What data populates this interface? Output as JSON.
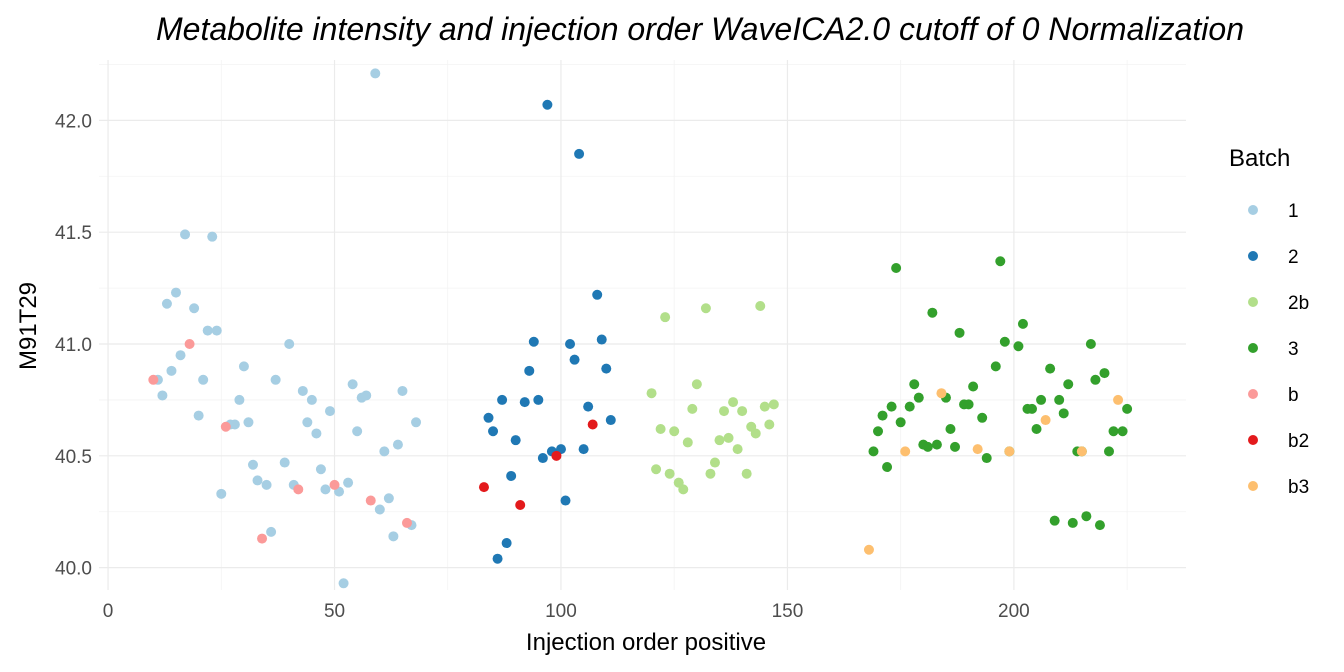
{
  "chart_data": {
    "type": "scatter",
    "title": "Metabolite intensity and injection order WaveICA2.0 cutoff of 0 Normalization",
    "xlabel": "Injection order positive",
    "ylabel": "M91T29",
    "xlim": [
      -2,
      238
    ],
    "ylim": [
      39.9,
      42.27
    ],
    "x_ticks": [
      0,
      50,
      100,
      150,
      200
    ],
    "x_tick_labels": [
      "0",
      "50",
      "100",
      "150",
      "200"
    ],
    "y_ticks": [
      40.0,
      40.5,
      41.0,
      41.5,
      42.0
    ],
    "y_tick_labels": [
      "40.0",
      "40.5",
      "41.0",
      "41.5",
      "42.0"
    ],
    "grid": true,
    "legend": {
      "title": "Batch",
      "position": "right"
    },
    "series": [
      {
        "name": "1",
        "color": "#a6cee3",
        "points": [
          [
            11,
            40.84
          ],
          [
            12,
            40.77
          ],
          [
            13,
            41.18
          ],
          [
            14,
            40.88
          ],
          [
            15,
            41.23
          ],
          [
            16,
            40.95
          ],
          [
            17,
            41.49
          ],
          [
            19,
            41.16
          ],
          [
            20,
            40.68
          ],
          [
            21,
            40.84
          ],
          [
            22,
            41.06
          ],
          [
            23,
            41.48
          ],
          [
            24,
            41.06
          ],
          [
            25,
            40.33
          ],
          [
            27,
            40.64
          ],
          [
            28,
            40.64
          ],
          [
            29,
            40.75
          ],
          [
            30,
            40.9
          ],
          [
            31,
            40.65
          ],
          [
            32,
            40.46
          ],
          [
            33,
            40.39
          ],
          [
            35,
            40.37
          ],
          [
            36,
            40.16
          ],
          [
            37,
            40.84
          ],
          [
            39,
            40.47
          ],
          [
            40,
            41.0
          ],
          [
            41,
            40.37
          ],
          [
            43,
            40.79
          ],
          [
            44,
            40.65
          ],
          [
            45,
            40.75
          ],
          [
            46,
            40.6
          ],
          [
            47,
            40.44
          ],
          [
            48,
            40.35
          ],
          [
            49,
            40.7
          ],
          [
            51,
            40.34
          ],
          [
            52,
            39.93
          ],
          [
            53,
            40.38
          ],
          [
            54,
            40.82
          ],
          [
            55,
            40.61
          ],
          [
            56,
            40.76
          ],
          [
            57,
            40.77
          ],
          [
            59,
            42.21
          ],
          [
            60,
            40.26
          ],
          [
            61,
            40.52
          ],
          [
            62,
            40.31
          ],
          [
            63,
            40.14
          ],
          [
            64,
            40.55
          ],
          [
            65,
            40.79
          ],
          [
            67,
            40.19
          ],
          [
            68,
            40.65
          ]
        ]
      },
      {
        "name": "2",
        "color": "#1f78b4",
        "points": [
          [
            84,
            40.67
          ],
          [
            85,
            40.61
          ],
          [
            86,
            40.04
          ],
          [
            87,
            40.75
          ],
          [
            88,
            40.11
          ],
          [
            89,
            40.41
          ],
          [
            90,
            40.57
          ],
          [
            92,
            40.74
          ],
          [
            93,
            40.88
          ],
          [
            94,
            41.01
          ],
          [
            95,
            40.75
          ],
          [
            96,
            40.49
          ],
          [
            97,
            42.07
          ],
          [
            98,
            40.52
          ],
          [
            100,
            40.53
          ],
          [
            101,
            40.3
          ],
          [
            102,
            41.0
          ],
          [
            103,
            40.93
          ],
          [
            104,
            41.85
          ],
          [
            105,
            40.53
          ],
          [
            106,
            40.72
          ],
          [
            108,
            41.22
          ],
          [
            109,
            41.02
          ],
          [
            110,
            40.89
          ],
          [
            111,
            40.66
          ]
        ]
      },
      {
        "name": "2b",
        "color": "#b2df8a",
        "points": [
          [
            120,
            40.78
          ],
          [
            121,
            40.44
          ],
          [
            122,
            40.62
          ],
          [
            123,
            41.12
          ],
          [
            124,
            40.42
          ],
          [
            125,
            40.61
          ],
          [
            126,
            40.38
          ],
          [
            127,
            40.35
          ],
          [
            128,
            40.56
          ],
          [
            129,
            40.71
          ],
          [
            130,
            40.82
          ],
          [
            132,
            41.16
          ],
          [
            133,
            40.42
          ],
          [
            134,
            40.47
          ],
          [
            135,
            40.57
          ],
          [
            136,
            40.7
          ],
          [
            137,
            40.58
          ],
          [
            138,
            40.74
          ],
          [
            139,
            40.53
          ],
          [
            140,
            40.7
          ],
          [
            141,
            40.42
          ],
          [
            142,
            40.63
          ],
          [
            143,
            40.6
          ],
          [
            144,
            41.17
          ],
          [
            145,
            40.72
          ],
          [
            146,
            40.64
          ],
          [
            147,
            40.73
          ]
        ]
      },
      {
        "name": "3",
        "color": "#33a02c",
        "points": [
          [
            169,
            40.52
          ],
          [
            170,
            40.61
          ],
          [
            171,
            40.68
          ],
          [
            172,
            40.45
          ],
          [
            173,
            40.72
          ],
          [
            174,
            41.34
          ],
          [
            175,
            40.65
          ],
          [
            177,
            40.72
          ],
          [
            178,
            40.82
          ],
          [
            179,
            40.76
          ],
          [
            180,
            40.55
          ],
          [
            181,
            40.54
          ],
          [
            182,
            41.14
          ],
          [
            183,
            40.55
          ],
          [
            185,
            40.76
          ],
          [
            186,
            40.62
          ],
          [
            187,
            40.54
          ],
          [
            188,
            41.05
          ],
          [
            189,
            40.73
          ],
          [
            190,
            40.73
          ],
          [
            191,
            40.81
          ],
          [
            193,
            40.67
          ],
          [
            194,
            40.49
          ],
          [
            196,
            40.9
          ],
          [
            197,
            41.37
          ],
          [
            198,
            41.01
          ],
          [
            199,
            40.52
          ],
          [
            201,
            40.99
          ],
          [
            202,
            41.09
          ],
          [
            203,
            40.71
          ],
          [
            204,
            40.71
          ],
          [
            205,
            40.62
          ],
          [
            206,
            40.75
          ],
          [
            208,
            40.89
          ],
          [
            209,
            40.21
          ],
          [
            210,
            40.75
          ],
          [
            211,
            40.69
          ],
          [
            212,
            40.82
          ],
          [
            213,
            40.2
          ],
          [
            214,
            40.52
          ],
          [
            215,
            40.52
          ],
          [
            216,
            40.23
          ],
          [
            217,
            41.0
          ],
          [
            218,
            40.84
          ],
          [
            219,
            40.19
          ],
          [
            220,
            40.87
          ],
          [
            221,
            40.52
          ],
          [
            222,
            40.61
          ],
          [
            224,
            40.61
          ],
          [
            225,
            40.71
          ]
        ]
      },
      {
        "name": "b",
        "color": "#fb9a99",
        "points": [
          [
            10,
            40.84
          ],
          [
            18,
            41.0
          ],
          [
            26,
            40.63
          ],
          [
            34,
            40.13
          ],
          [
            42,
            40.35
          ],
          [
            50,
            40.37
          ],
          [
            58,
            40.3
          ],
          [
            66,
            40.2
          ]
        ]
      },
      {
        "name": "b2",
        "color": "#e31a1c",
        "points": [
          [
            83,
            40.36
          ],
          [
            91,
            40.28
          ],
          [
            99,
            40.5
          ],
          [
            107,
            40.64
          ]
        ]
      },
      {
        "name": "b3",
        "color": "#fdbf6f",
        "points": [
          [
            168,
            40.08
          ],
          [
            176,
            40.52
          ],
          [
            184,
            40.78
          ],
          [
            192,
            40.53
          ],
          [
            199,
            40.52
          ],
          [
            207,
            40.66
          ],
          [
            215,
            40.52
          ],
          [
            223,
            40.75
          ]
        ]
      }
    ]
  }
}
